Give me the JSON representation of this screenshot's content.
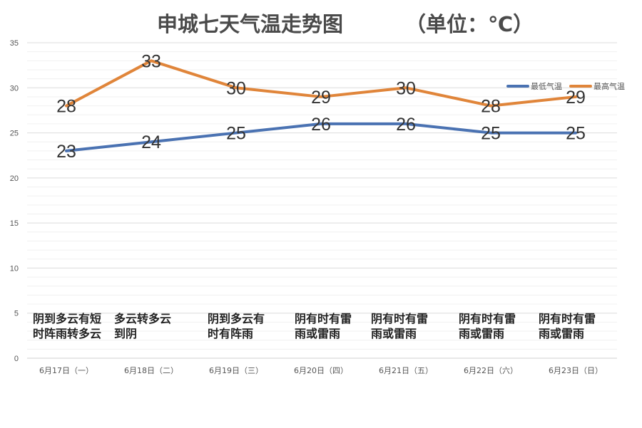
{
  "chart_data": {
    "type": "line",
    "title": "申城七天气温走势图",
    "unit_label": "（单位：℃）",
    "categories": [
      "6月17日（一）",
      "6月18日（二）",
      "6月19日（三）",
      "6月20日（四）",
      "6月21日（五）",
      "6月22日（六）",
      "6月23日（日）"
    ],
    "series": [
      {
        "name": "最低气温",
        "color": "#4a72b2",
        "values": [
          23,
          24,
          25,
          26,
          26,
          25,
          25
        ]
      },
      {
        "name": "最高气温",
        "color": "#e0853a",
        "values": [
          28,
          33,
          30,
          29,
          30,
          28,
          29
        ]
      }
    ],
    "ylim": [
      0,
      35
    ],
    "yticks": [
      0,
      5,
      10,
      15,
      20,
      25,
      30,
      35
    ],
    "grid": true,
    "legend_position": "top-right",
    "weather": [
      [
        "阴到多云有短",
        "时阵雨转多云"
      ],
      [
        "多云转多云",
        "到阴"
      ],
      [
        "阴到多云有",
        "时有阵雨"
      ],
      [
        "阴有时有雷",
        "雨或雷雨"
      ],
      [
        "阴有时有雷",
        "雨或雷雨"
      ],
      [
        "阴有时有雷",
        "雨或雷雨"
      ],
      [
        "阴有时有雷",
        "雨或雷雨"
      ]
    ]
  }
}
